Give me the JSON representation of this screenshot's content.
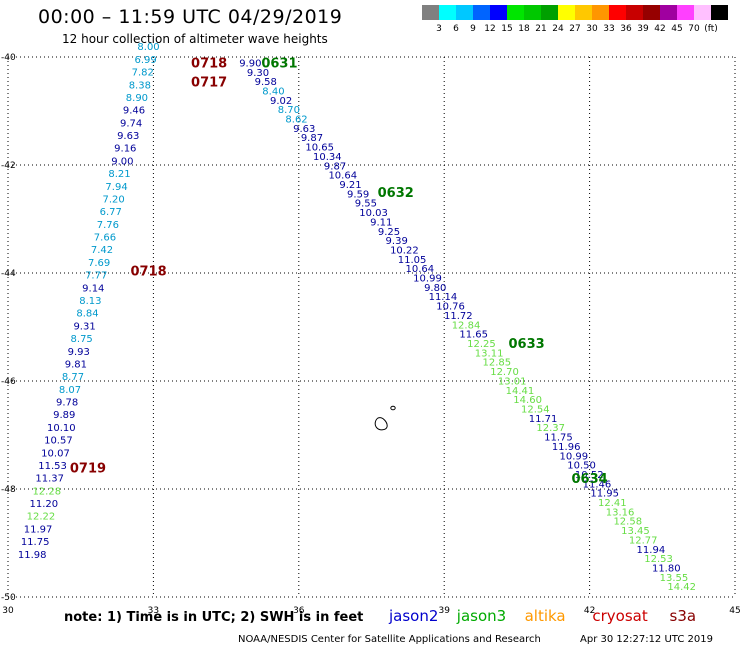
{
  "header": {
    "title": "00:00 – 11:59 UTC 04/29/2019",
    "subtitle": "12 hour collection of altimeter wave heights"
  },
  "legend": {
    "colors": [
      "#808080",
      "#00ffff",
      "#00c8ff",
      "#0064ff",
      "#0000ff",
      "#00e600",
      "#00c800",
      "#00a000",
      "#ffff00",
      "#ffc800",
      "#ff9600",
      "#ff0000",
      "#c80000",
      "#960000",
      "#a000a0",
      "#ff40ff",
      "#ffc0ff",
      "#000000"
    ],
    "labels": [
      "3",
      "6",
      "9",
      "12",
      "15",
      "18",
      "21",
      "24",
      "27",
      "30",
      "33",
      "36",
      "39",
      "42",
      "45",
      "70",
      "(ft)"
    ]
  },
  "note": "note: 1) Time is in UTC; 2) SWH is in feet",
  "satellites": [
    {
      "name": "jason2",
      "color": "#0000cc"
    },
    {
      "name": "jason3",
      "color": "#00aa00"
    },
    {
      "name": "altika",
      "color": "#ff9900"
    },
    {
      "name": "cryosat",
      "color": "#cc0000"
    },
    {
      "name": "s3a",
      "color": "#880000"
    }
  ],
  "credit": "NOAA/NESDIS Center for Satellite Applications and Research",
  "timestamp": "Apr 30 12:27:12 UTC 2019",
  "colors": {
    "blue": "#000099",
    "cyan": "#0099cc",
    "green": "#66dd44",
    "dgreen": "#007700",
    "maroon": "#880000"
  },
  "chart_data": {
    "type": "scatter",
    "xlim": [
      30,
      45
    ],
    "ylim": [
      -50,
      -40
    ],
    "x_ticks": [
      30,
      33,
      36,
      39,
      42,
      45
    ],
    "y_ticks": [
      -40,
      -42,
      -44,
      -46,
      -48,
      -50
    ],
    "grid": true,
    "tracks": [
      {
        "color": "blue",
        "lon0": 30.5,
        "lat0": -49.2,
        "lon1": 32.9,
        "lat1": -39.8,
        "labels": [
          "11.98",
          "11.75",
          "11.97",
          "12.22",
          "11.20",
          "12.28",
          "11.37",
          "11.53",
          "10.07",
          "10.57",
          "10.10",
          "9.89",
          "9.78",
          "8.07",
          "8.77",
          "9.81",
          "9.93",
          "8.75",
          "9.31",
          "8.84",
          "8.13",
          "9.14",
          "7.77",
          "7.69",
          "7.42",
          "7.66",
          "7.76",
          "6.77",
          "7.20",
          "7.94",
          "8.21",
          "9.00",
          "9.16",
          "9.63",
          "9.74",
          "9.46",
          "8.90",
          "8.38",
          "7.82",
          "6.99",
          "8.00"
        ]
      },
      {
        "color": "blue",
        "lon0": 35.0,
        "lat0": -40.1,
        "lon1": 43.9,
        "lat1": -49.8,
        "labels": [
          "9.90",
          "9.30",
          "9.58",
          "8.40",
          "9.02",
          "8.70",
          "8.62",
          "9.63",
          "9.87",
          "10.65",
          "10.34",
          "9.87",
          "10.64",
          "9.21",
          "9.59",
          "9.55",
          "10.03",
          "9.11",
          "9.25",
          "9.39",
          "10.22",
          "11.05",
          "10.64",
          "10.99",
          "9.80",
          "11.14",
          "10.76",
          "11.72",
          "12.84",
          "11.65",
          "12.25",
          "13.11",
          "12.85",
          "12.70",
          "13.01",
          "14.41",
          "14.60",
          "12.54",
          "11.71",
          "12.37",
          "11.75",
          "11.96",
          "10.99",
          "10.50",
          "10.52",
          "11.46",
          "11.95",
          "12.41",
          "13.16",
          "12.58",
          "13.45",
          "12.77",
          "11.94",
          "12.53",
          "11.80",
          "13.55",
          "14.42"
        ]
      }
    ],
    "time_labels": [
      {
        "text": "0718",
        "color": "maroon",
        "lon": 34.15,
        "lat": -40.1
      },
      {
        "text": "0717",
        "color": "maroon",
        "lon": 34.15,
        "lat": -40.45
      },
      {
        "text": "0718",
        "color": "maroon",
        "lon": 32.9,
        "lat": -43.95
      },
      {
        "text": "0719",
        "color": "maroon",
        "lon": 31.65,
        "lat": -47.6
      },
      {
        "text": "0631",
        "color": "dgreen",
        "lon": 35.6,
        "lat": -40.1
      },
      {
        "text": "0632",
        "color": "dgreen",
        "lon": 38.0,
        "lat": -42.5
      },
      {
        "text": "0633",
        "color": "dgreen",
        "lon": 40.7,
        "lat": -45.3
      },
      {
        "text": "0634",
        "color": "dgreen",
        "lon": 42.0,
        "lat": -47.8
      }
    ]
  }
}
